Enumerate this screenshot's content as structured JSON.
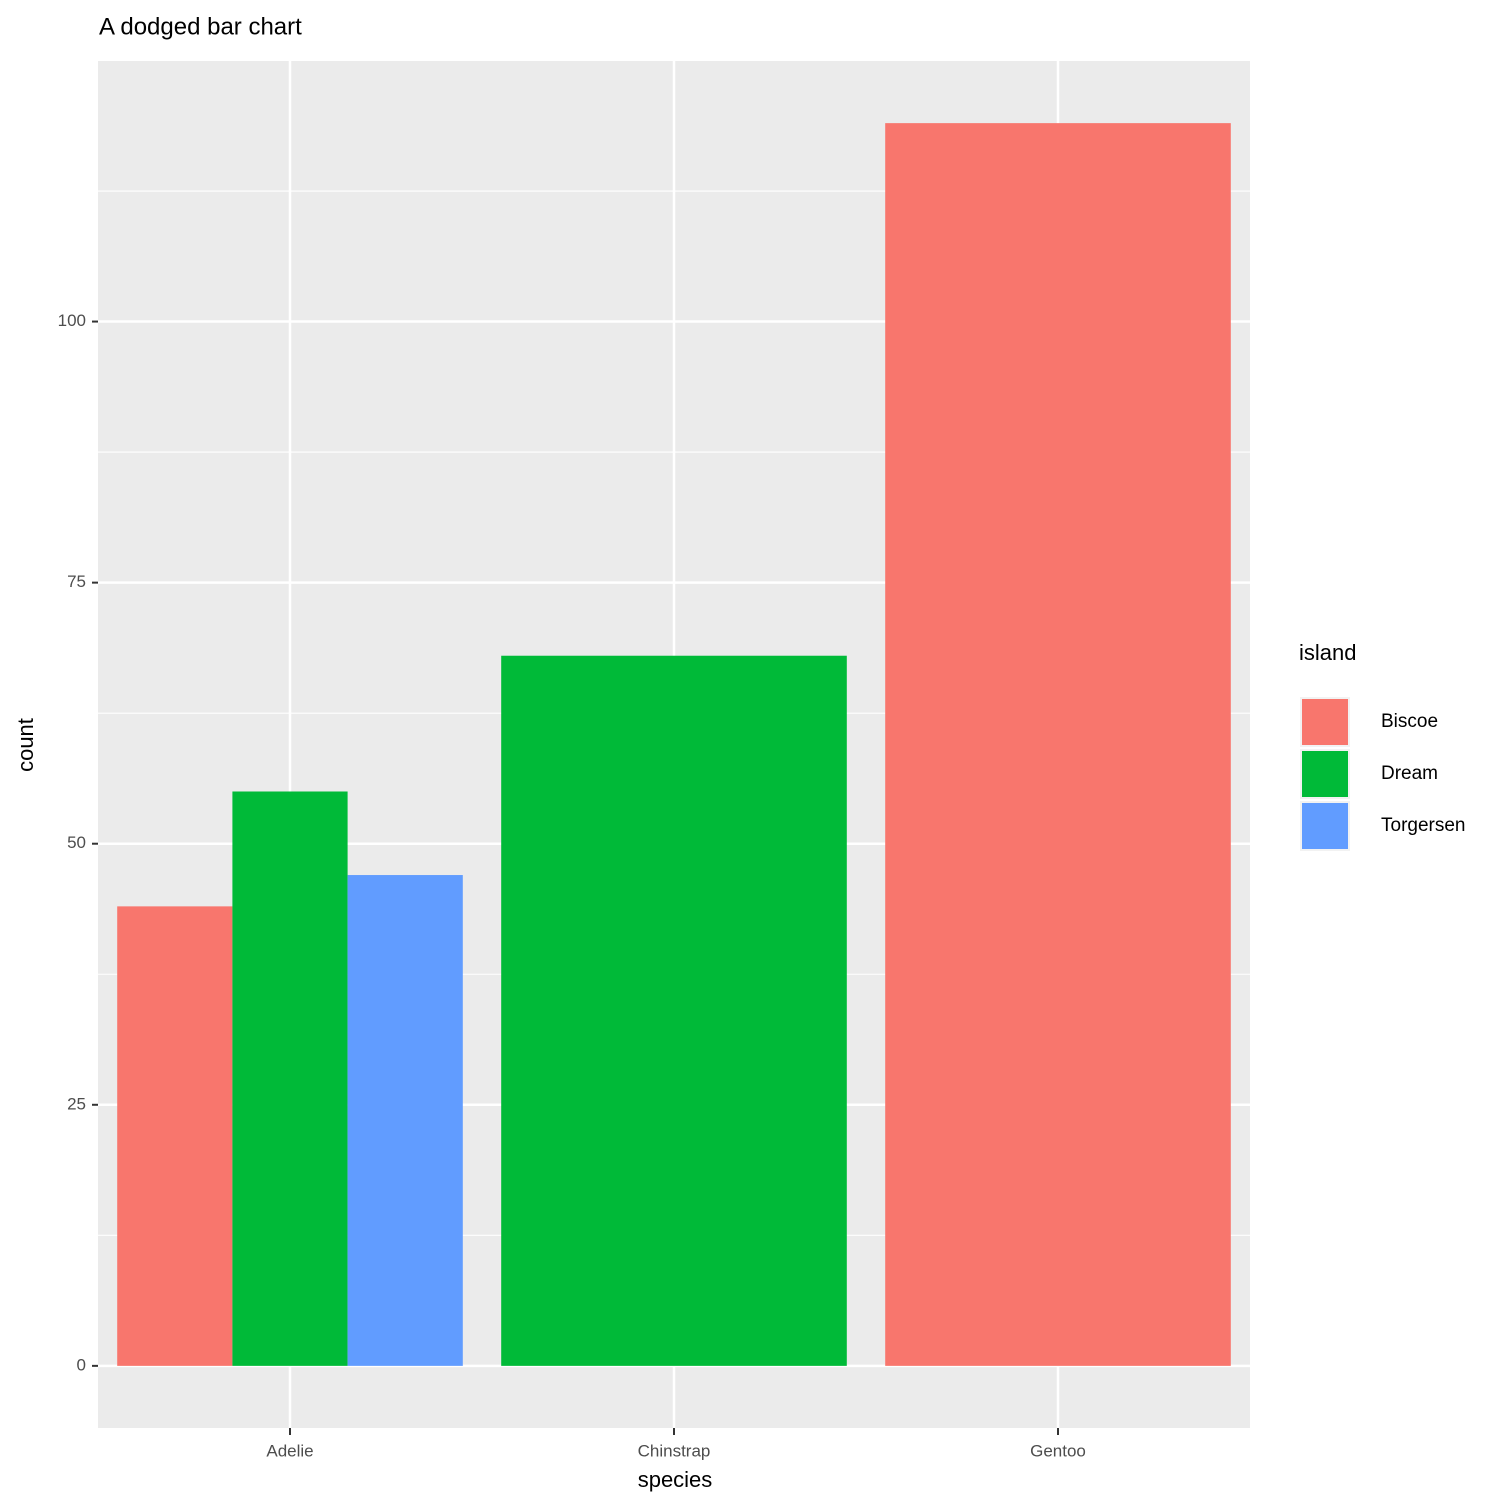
{
  "chart_data": {
    "type": "bar",
    "title": "A dodged bar chart",
    "x_label": "species",
    "y_label": "count",
    "categories": [
      "Adelie",
      "Chinstrap",
      "Gentoo"
    ],
    "legend_title": "island",
    "series": [
      {
        "name": "Biscoe",
        "color": "#f8766d",
        "values": [
          44,
          null,
          119
        ]
      },
      {
        "name": "Dream",
        "color": "#00ba38",
        "values": [
          55,
          68,
          null
        ]
      },
      {
        "name": "Torgersen",
        "color": "#619cff",
        "values": [
          47,
          null,
          null
        ]
      }
    ],
    "ylim": [
      -5.95,
      124.95
    ],
    "yticks": [
      0,
      25,
      50,
      75,
      100
    ],
    "grid": true,
    "legend": "right"
  }
}
